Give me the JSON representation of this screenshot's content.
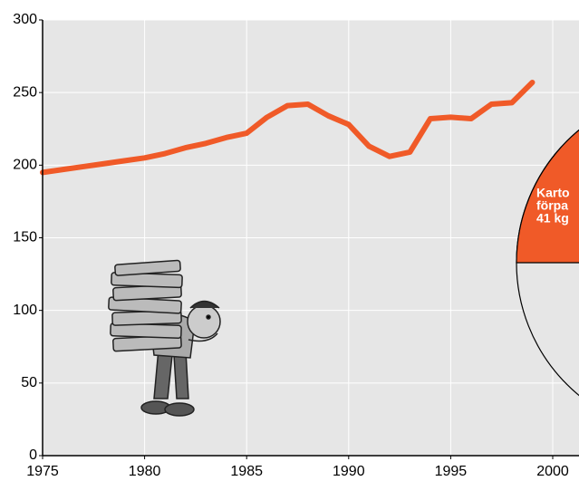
{
  "chart_data": {
    "type": "line",
    "x": [
      1975,
      1976,
      1977,
      1978,
      1979,
      1980,
      1981,
      1982,
      1983,
      1984,
      1985,
      1986,
      1987,
      1988,
      1989,
      1990,
      1991,
      1992,
      1993,
      1994,
      1995,
      1996,
      1997,
      1998,
      1999
    ],
    "series": [
      {
        "color": "#f05a28",
        "values": [
          195,
          197,
          199,
          201,
          203,
          205,
          208,
          212,
          215,
          219,
          222,
          233,
          241,
          242,
          234,
          228,
          213,
          206,
          209,
          232,
          233,
          232,
          242,
          243,
          257
        ]
      }
    ],
    "xlim": [
      1975,
      2000
    ],
    "xticks": [
      1975,
      1980,
      1985,
      1990,
      1995,
      2000
    ],
    "ylim": [
      0,
      300
    ],
    "yticks": [
      0,
      50,
      100,
      150,
      200,
      250,
      300
    ],
    "grid": true,
    "annotations": [
      "Karto",
      "förpa",
      "41 kg"
    ]
  }
}
